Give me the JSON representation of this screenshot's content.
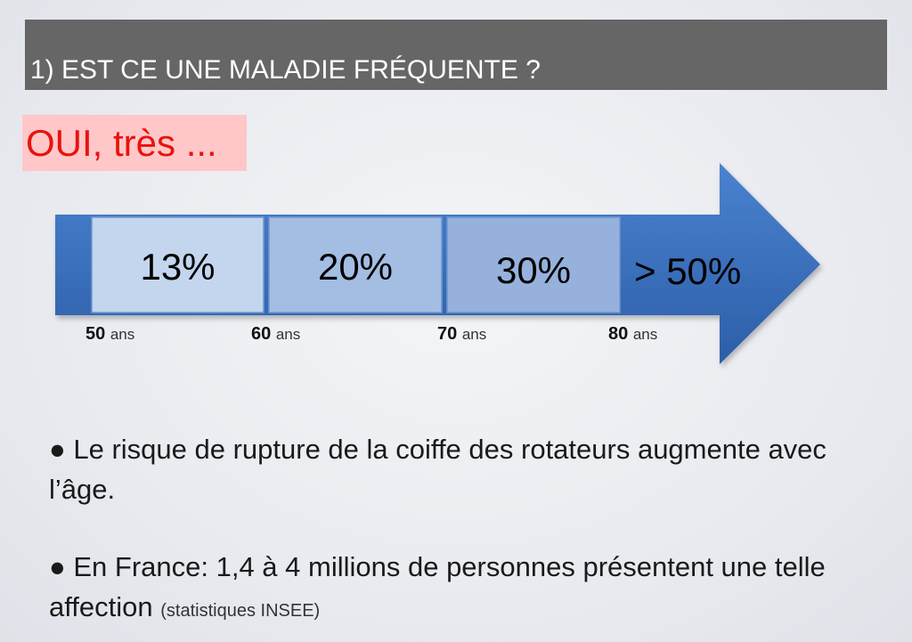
{
  "slide": {
    "title": "1) EST CE UNE MALADIE FRÉQUENTE ?",
    "answer": "OUI, très ...",
    "arrow": {
      "segments": [
        "13%",
        "20%",
        "30%",
        "> 50%"
      ],
      "ages": [
        {
          "num": "50",
          "unit": "ans"
        },
        {
          "num": "60",
          "unit": "ans"
        },
        {
          "num": "70",
          "unit": "ans"
        },
        {
          "num": "80",
          "unit": "ans"
        }
      ],
      "colors": {
        "arrow": "#3f73c2",
        "seg1": "#c3d6ee",
        "seg2": "#a4bde2",
        "seg3": "#95b1dc"
      }
    },
    "bullets": [
      {
        "marker": "●",
        "text": "Le risque de rupture de la coiffe des rotateurs augmente avec l’âge.",
        "note": ""
      },
      {
        "marker": "●",
        "text": "En France: 1,4 à 4 millions de personnes présentent une telle affection",
        "note": "(statistiques INSEE)"
      }
    ]
  }
}
